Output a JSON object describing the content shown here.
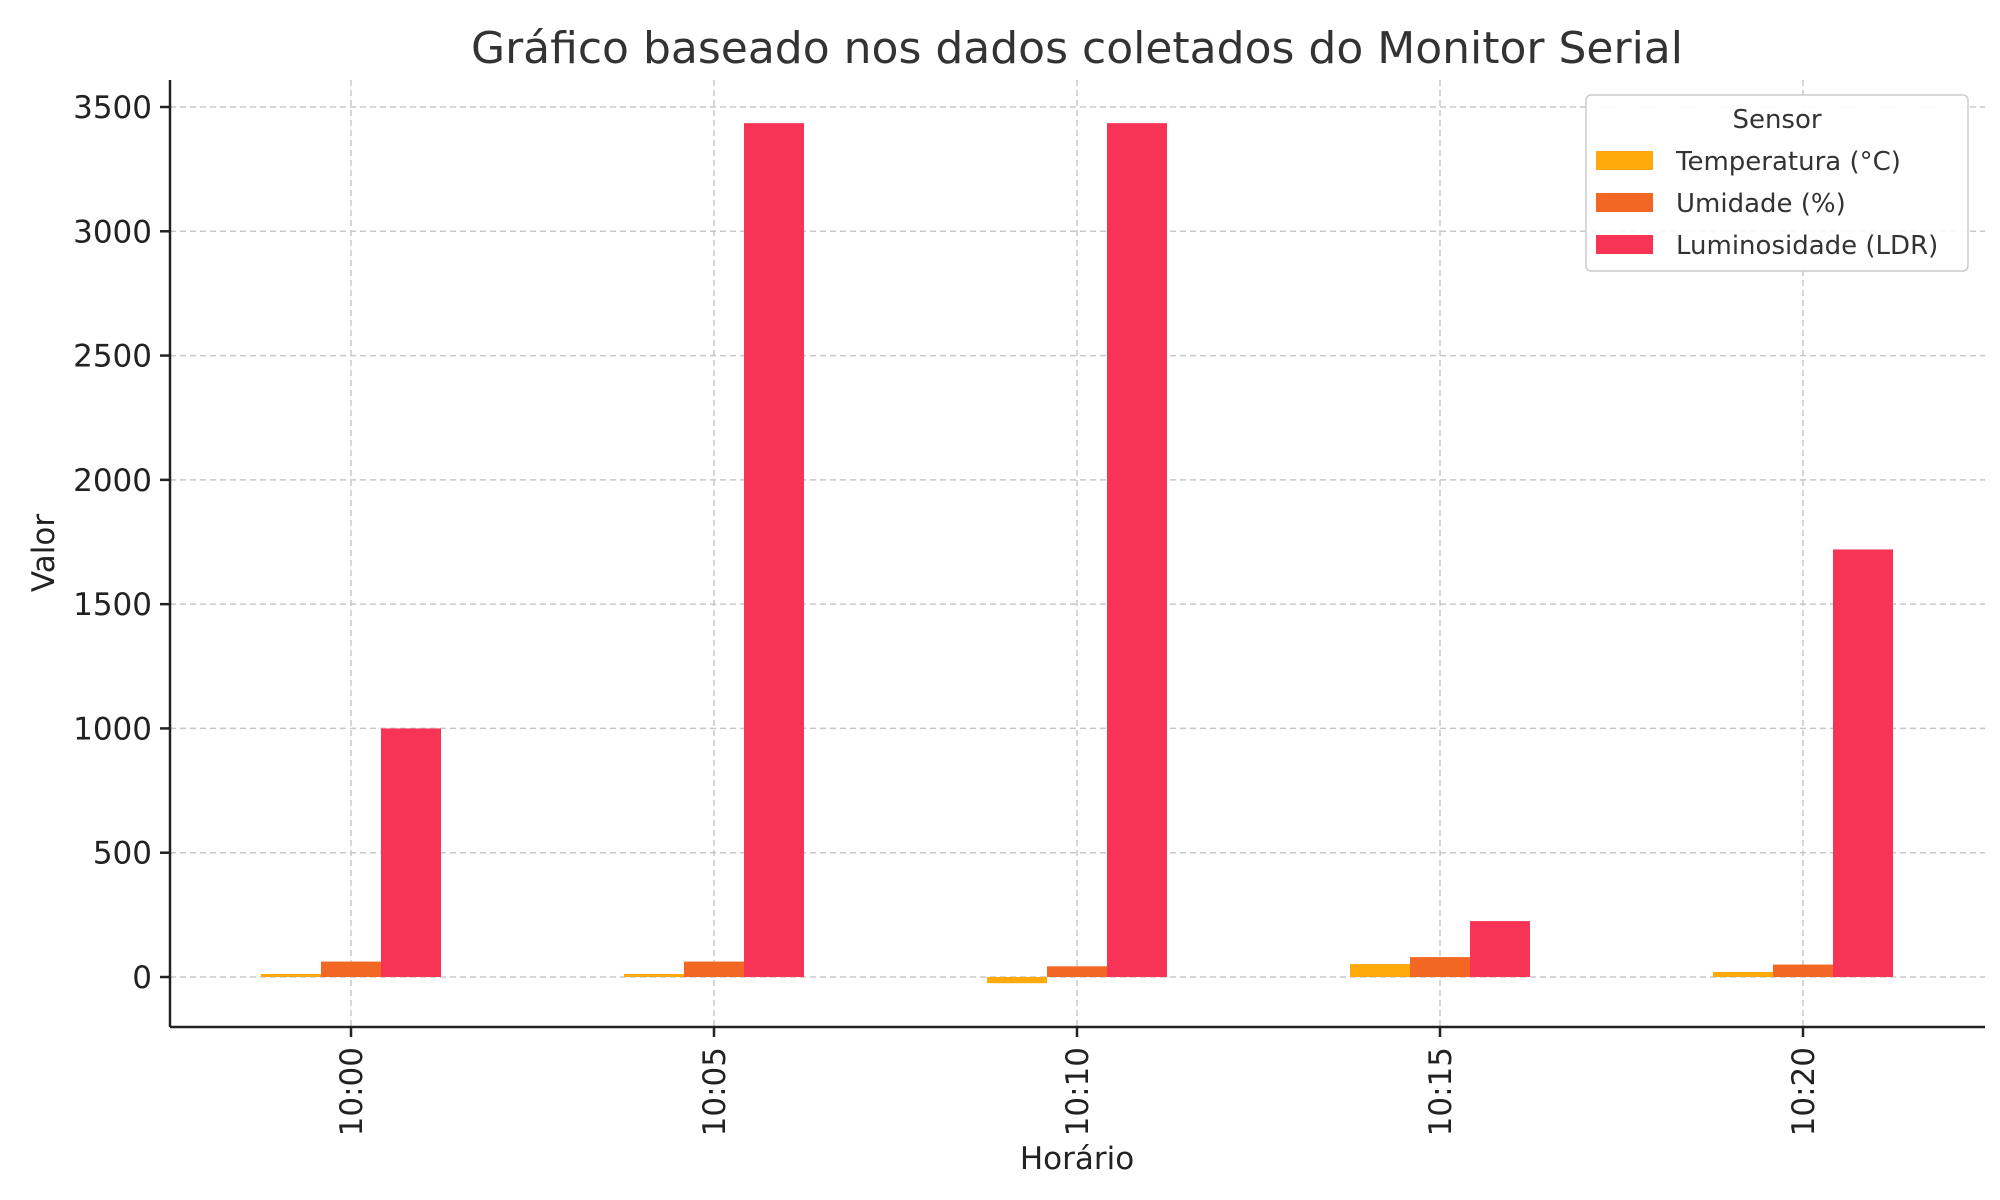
{
  "chart_data": {
    "type": "bar",
    "title": "Gráfico baseado nos dados coletados do Monitor Serial",
    "xlabel": "Horário",
    "ylabel": "Valor",
    "categories": [
      "10:00",
      "10:05",
      "10:10",
      "10:15",
      "10:20"
    ],
    "series": [
      {
        "name": "Temperatura (°C)",
        "color": "#FFA90A",
        "values": [
          12,
          12,
          -25,
          52,
          20
        ]
      },
      {
        "name": "Umidade (%)",
        "color": "#F26724",
        "values": [
          62,
          62,
          43,
          80,
          50
        ]
      },
      {
        "name": "Luminosidade (LDR)",
        "color": "#F73455",
        "values": [
          1000,
          3435,
          3435,
          225,
          1720
        ]
      }
    ],
    "ylim": [
      -200,
      3600
    ],
    "yticks": [
      0,
      500,
      1000,
      1500,
      2000,
      2500,
      3000,
      3500
    ],
    "grid": true,
    "legend": {
      "title": "Sensor",
      "position": "top-right"
    }
  }
}
